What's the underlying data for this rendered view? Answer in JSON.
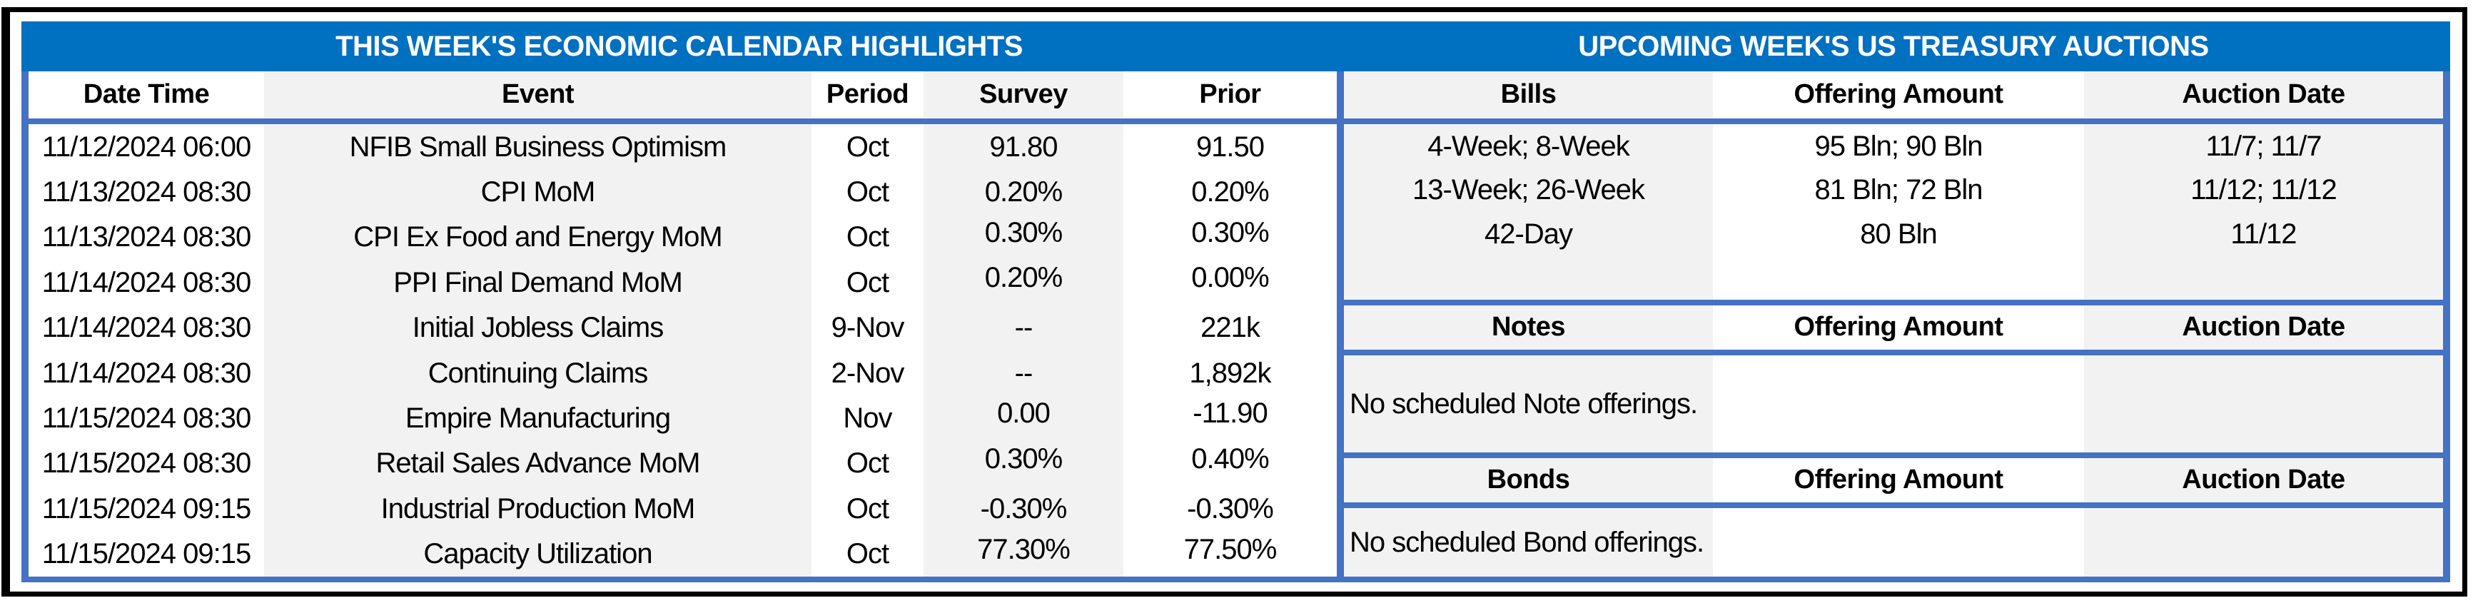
{
  "colors": {
    "header_blue": "#0070C0",
    "border_blue": "#4472C4",
    "cell_gray": "#F2F2F2",
    "title_text": "#FFFFFF",
    "body_text": "#000000"
  },
  "left_table": {
    "title": "THIS WEEK'S ECONOMIC CALENDAR HIGHLIGHTS",
    "columns": {
      "date": "Date Time",
      "event": "Event",
      "period": "Period",
      "survey": "Survey",
      "prior": "Prior"
    },
    "rows": [
      {
        "date": "11/12/2024 06:00",
        "event": "NFIB Small Business Optimism",
        "period": "Oct",
        "survey": "91.80",
        "prior": "91.50"
      },
      {
        "date": "11/13/2024 08:30",
        "event": "CPI MoM",
        "period": "Oct",
        "survey": "0.20%",
        "prior": "0.20%"
      },
      {
        "date": "11/13/2024 08:30",
        "event": "CPI Ex Food and Energy MoM",
        "period": "Oct",
        "survey": "0.30%",
        "prior": "0.30%"
      },
      {
        "date": "11/14/2024 08:30",
        "event": "PPI Final Demand MoM",
        "period": "Oct",
        "survey": "0.20%",
        "prior": "0.00%"
      },
      {
        "date": "11/14/2024 08:30",
        "event": "Initial Jobless Claims",
        "period": "9-Nov",
        "survey": "--",
        "prior": "221k"
      },
      {
        "date": "11/14/2024 08:30",
        "event": "Continuing Claims",
        "period": "2-Nov",
        "survey": "--",
        "prior": "1,892k"
      },
      {
        "date": "11/15/2024 08:30",
        "event": "Empire Manufacturing",
        "period": "Nov",
        "survey": "0.00",
        "prior": "-11.90"
      },
      {
        "date": "11/15/2024 08:30",
        "event": "Retail Sales Advance MoM",
        "period": "Oct",
        "survey": "0.30%",
        "prior": "0.40%"
      },
      {
        "date": "11/15/2024 09:15",
        "event": "Industrial Production MoM",
        "period": "Oct",
        "survey": "-0.30%",
        "prior": "-0.30%"
      },
      {
        "date": "11/15/2024 09:15",
        "event": "Capacity Utilization",
        "period": "Oct",
        "survey": "77.30%",
        "prior": "77.50%"
      }
    ]
  },
  "right_table": {
    "title": "UPCOMING WEEK'S US TREASURY AUCTIONS",
    "bills": {
      "columns": {
        "type": "Bills",
        "amount": "Offering Amount",
        "date": "Auction Date"
      },
      "rows": [
        [
          "4-Week; 8-Week",
          "95 Bln; 90 Bln",
          "11/7; 11/7"
        ],
        [
          "13-Week; 26-Week",
          "81 Bln; 72 Bln",
          "11/12; 11/12"
        ],
        [
          "42-Day",
          "80 Bln",
          "11/12"
        ],
        [
          "",
          "",
          ""
        ]
      ]
    },
    "notes": {
      "columns": {
        "type": "Notes",
        "amount": "Offering Amount",
        "date": "Auction Date"
      },
      "message": "No scheduled Note offerings."
    },
    "bonds": {
      "columns": {
        "type": "Bonds",
        "amount": "Offering Amount",
        "date": "Auction Date"
      },
      "message": "No scheduled Bond offerings."
    }
  }
}
